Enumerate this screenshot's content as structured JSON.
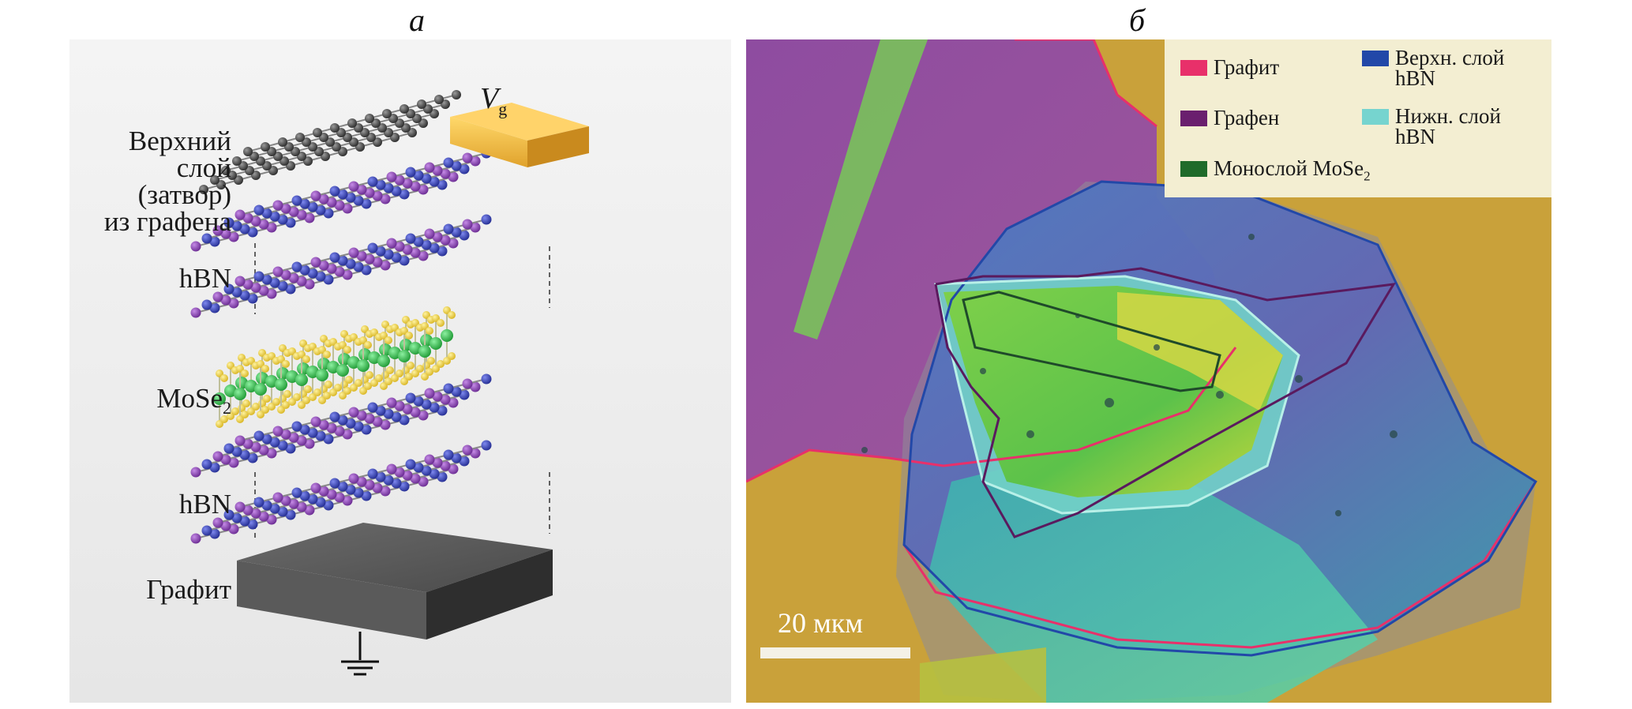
{
  "figure": {
    "panel_a_label": "а",
    "panel_b_label": "б"
  },
  "panel_a": {
    "gate_voltage_label": "V",
    "gate_voltage_subscript": "g",
    "top_gate_label": [
      "Верхний",
      "слой",
      "(затвор)",
      "из графена"
    ],
    "hbn_top_label": "hBN",
    "mose2_label": "MoSe",
    "mose2_subscript": "2",
    "hbn_bottom_label": "hBN",
    "graphite_label": "Графит",
    "colors": {
      "carbon": "#3d3d3d",
      "boron": "#7b3fa3",
      "nitrogen": "#2f3aa8",
      "selenium": "#f2d23a",
      "molybdenum": "#3bbf4e",
      "gate_electrode": "#f0b840",
      "graphite_block": "#4a4a4a"
    }
  },
  "panel_b": {
    "legend": {
      "graphite": "Графит",
      "graphene": "Графен",
      "monolayer": "Монослой MoSe",
      "monolayer_subscript": "2",
      "top_hbn_line1": "Верхн. слой",
      "top_hbn_line2": "hBN",
      "bottom_hbn_line1": "Нижн. слой",
      "bottom_hbn_line2": "hBN"
    },
    "legend_colors": {
      "graphite": "#e8306a",
      "graphene": "#6a1f6e",
      "monolayer": "#1f6b2a",
      "top_hbn": "#2248a8",
      "bottom_hbn": "#76d4cf"
    },
    "scale_bar_label": "20 мкм"
  }
}
